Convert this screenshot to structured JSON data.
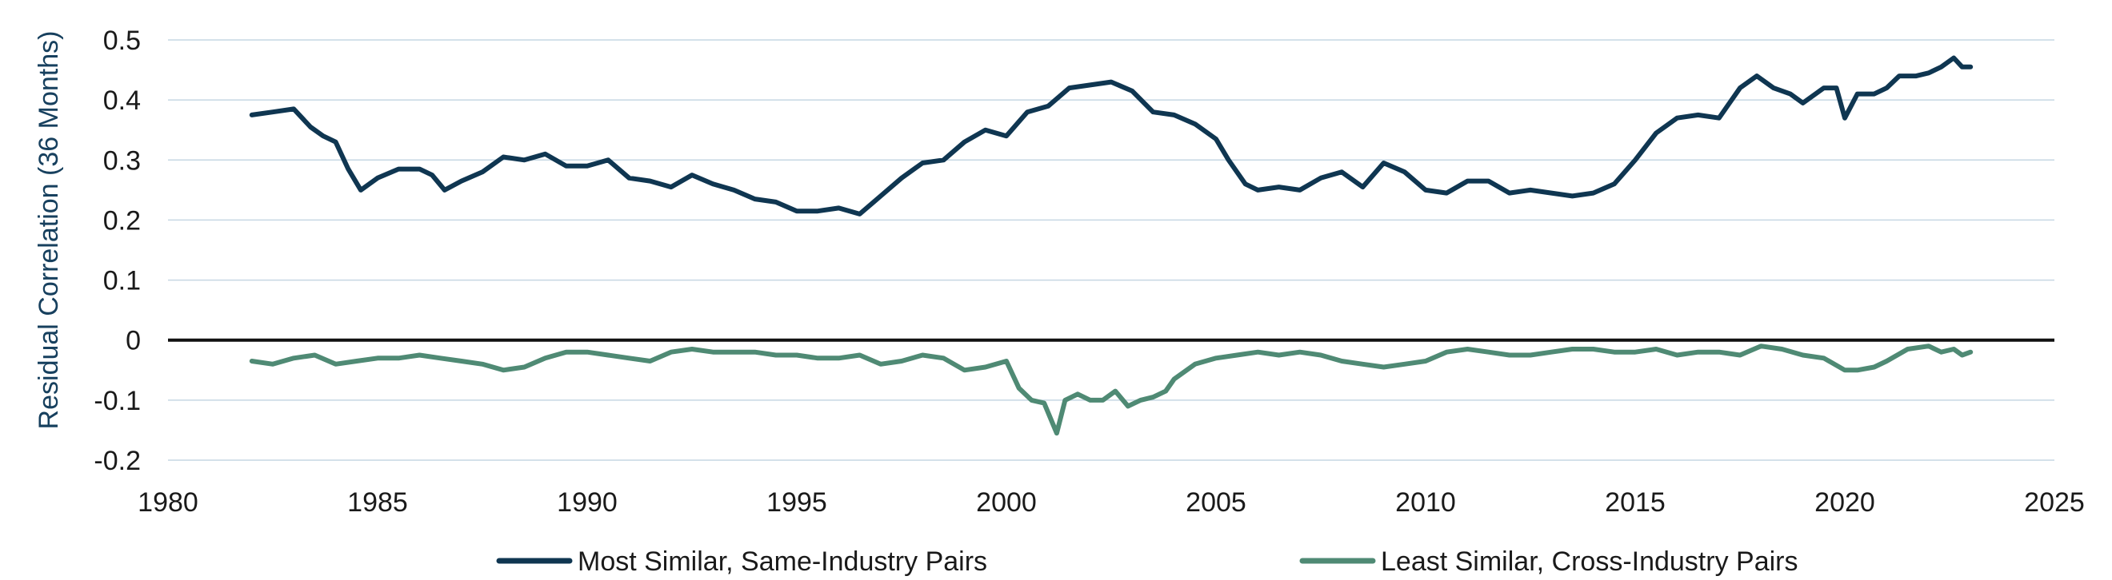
{
  "chart_data": {
    "type": "line",
    "title": "",
    "xlabel": "",
    "ylabel": "Residual Correlation (36 Months)",
    "xlim": [
      1980,
      2025
    ],
    "ylim": [
      -0.2,
      0.5
    ],
    "x_ticks": [
      1980,
      1985,
      1990,
      1995,
      2000,
      2005,
      2010,
      2015,
      2020,
      2025
    ],
    "x_tick_labels": [
      "1980",
      "1985",
      "1990",
      "1995",
      "2000",
      "2005",
      "2010",
      "2015",
      "2020",
      "2025"
    ],
    "y_ticks": [
      -0.2,
      -0.1,
      0,
      0.1,
      0.2,
      0.3,
      0.4,
      0.5
    ],
    "y_tick_labels": [
      "-0.2",
      "-0.1",
      "0",
      "0.1",
      "0.2",
      "0.3",
      "0.4",
      "0.5"
    ],
    "grid": true,
    "legend_position": "bottom",
    "series": [
      {
        "name": "Most Similar, Same-Industry Pairs",
        "color": "#0f3651",
        "x": [
          1982.0,
          1982.5,
          1983.0,
          1983.4,
          1983.7,
          1984.0,
          1984.3,
          1984.6,
          1985.0,
          1985.5,
          1986.0,
          1986.3,
          1986.6,
          1987.0,
          1987.5,
          1988.0,
          1988.5,
          1989.0,
          1989.5,
          1990.0,
          1990.5,
          1991.0,
          1991.5,
          1992.0,
          1992.5,
          1993.0,
          1993.5,
          1994.0,
          1994.5,
          1995.0,
          1995.5,
          1996.0,
          1996.5,
          1997.0,
          1997.5,
          1998.0,
          1998.5,
          1999.0,
          1999.5,
          2000.0,
          2000.5,
          2001.0,
          2001.5,
          2002.0,
          2002.5,
          2003.0,
          2003.5,
          2004.0,
          2004.5,
          2005.0,
          2005.3,
          2005.7,
          2006.0,
          2006.5,
          2007.0,
          2007.5,
          2008.0,
          2008.5,
          2009.0,
          2009.5,
          2010.0,
          2010.5,
          2011.0,
          2011.5,
          2012.0,
          2012.5,
          2013.0,
          2013.5,
          2014.0,
          2014.5,
          2015.0,
          2015.5,
          2016.0,
          2016.5,
          2017.0,
          2017.5,
          2017.9,
          2018.3,
          2018.7,
          2019.0,
          2019.5,
          2019.8,
          2020.0,
          2020.3,
          2020.7,
          2021.0,
          2021.3,
          2021.7,
          2022.0,
          2022.3,
          2022.6,
          2022.8,
          2023.0
        ],
        "values": [
          0.375,
          0.38,
          0.385,
          0.355,
          0.34,
          0.33,
          0.285,
          0.25,
          0.27,
          0.285,
          0.285,
          0.275,
          0.25,
          0.265,
          0.28,
          0.305,
          0.3,
          0.31,
          0.29,
          0.29,
          0.3,
          0.27,
          0.265,
          0.255,
          0.275,
          0.26,
          0.25,
          0.235,
          0.23,
          0.215,
          0.215,
          0.22,
          0.21,
          0.24,
          0.27,
          0.295,
          0.3,
          0.33,
          0.35,
          0.34,
          0.38,
          0.39,
          0.42,
          0.425,
          0.43,
          0.415,
          0.38,
          0.375,
          0.36,
          0.335,
          0.3,
          0.26,
          0.25,
          0.255,
          0.25,
          0.27,
          0.28,
          0.255,
          0.295,
          0.28,
          0.25,
          0.245,
          0.265,
          0.265,
          0.245,
          0.25,
          0.245,
          0.24,
          0.245,
          0.26,
          0.3,
          0.345,
          0.37,
          0.375,
          0.37,
          0.42,
          0.44,
          0.42,
          0.41,
          0.395,
          0.42,
          0.42,
          0.37,
          0.41,
          0.41,
          0.42,
          0.44,
          0.44,
          0.445,
          0.455,
          0.47,
          0.455,
          0.455
        ]
      },
      {
        "name": "Least Similar, Cross-Industry Pairs",
        "color": "#4f8a74",
        "x": [
          1982.0,
          1982.5,
          1983.0,
          1983.5,
          1984.0,
          1984.5,
          1985.0,
          1985.5,
          1986.0,
          1986.5,
          1987.0,
          1987.5,
          1988.0,
          1988.5,
          1989.0,
          1989.5,
          1990.0,
          1990.5,
          1991.0,
          1991.5,
          1992.0,
          1992.5,
          1993.0,
          1993.5,
          1994.0,
          1994.5,
          1995.0,
          1995.5,
          1996.0,
          1996.5,
          1997.0,
          1997.5,
          1998.0,
          1998.5,
          1999.0,
          1999.5,
          2000.0,
          2000.3,
          2000.6,
          2000.9,
          2001.2,
          2001.4,
          2001.7,
          2002.0,
          2002.3,
          2002.6,
          2002.9,
          2003.2,
          2003.5,
          2003.8,
          2004.0,
          2004.5,
          2005.0,
          2005.5,
          2006.0,
          2006.5,
          2007.0,
          2007.5,
          2008.0,
          2008.5,
          2009.0,
          2009.5,
          2010.0,
          2010.5,
          2011.0,
          2011.5,
          2012.0,
          2012.5,
          2013.0,
          2013.5,
          2014.0,
          2014.5,
          2015.0,
          2015.5,
          2016.0,
          2016.5,
          2017.0,
          2017.5,
          2018.0,
          2018.5,
          2019.0,
          2019.5,
          2020.0,
          2020.3,
          2020.7,
          2021.0,
          2021.5,
          2022.0,
          2022.3,
          2022.6,
          2022.8,
          2023.0
        ],
        "values": [
          -0.035,
          -0.04,
          -0.03,
          -0.025,
          -0.04,
          -0.035,
          -0.03,
          -0.03,
          -0.025,
          -0.03,
          -0.035,
          -0.04,
          -0.05,
          -0.045,
          -0.03,
          -0.02,
          -0.02,
          -0.025,
          -0.03,
          -0.035,
          -0.02,
          -0.015,
          -0.02,
          -0.02,
          -0.02,
          -0.025,
          -0.025,
          -0.03,
          -0.03,
          -0.025,
          -0.04,
          -0.035,
          -0.025,
          -0.03,
          -0.05,
          -0.045,
          -0.035,
          -0.08,
          -0.1,
          -0.105,
          -0.155,
          -0.1,
          -0.09,
          -0.1,
          -0.1,
          -0.085,
          -0.11,
          -0.1,
          -0.095,
          -0.085,
          -0.065,
          -0.04,
          -0.03,
          -0.025,
          -0.02,
          -0.025,
          -0.02,
          -0.025,
          -0.035,
          -0.04,
          -0.045,
          -0.04,
          -0.035,
          -0.02,
          -0.015,
          -0.02,
          -0.025,
          -0.025,
          -0.02,
          -0.015,
          -0.015,
          -0.02,
          -0.02,
          -0.015,
          -0.025,
          -0.02,
          -0.02,
          -0.025,
          -0.01,
          -0.015,
          -0.025,
          -0.03,
          -0.05,
          -0.05,
          -0.045,
          -0.035,
          -0.015,
          -0.01,
          -0.02,
          -0.015,
          -0.025,
          -0.02
        ]
      }
    ]
  }
}
